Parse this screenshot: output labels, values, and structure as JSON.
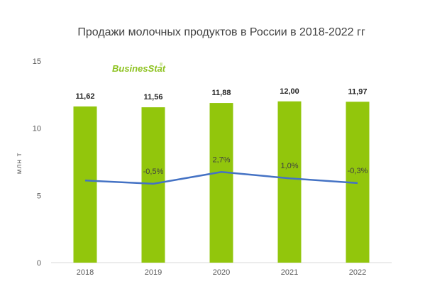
{
  "chart_data": {
    "type": "bar",
    "title": "Продажи молочных продуктов в России в 2018-2022 гг",
    "ylabel": "млн т",
    "xlabel": "",
    "ylim": [
      0,
      15
    ],
    "yticks": [
      0,
      5,
      10,
      15
    ],
    "categories": [
      "2018",
      "2019",
      "2020",
      "2021",
      "2022"
    ],
    "series": [
      {
        "type": "bar",
        "values": [
          11.62,
          11.56,
          11.88,
          12.0,
          11.97
        ],
        "labels": [
          "11,62",
          "11,56",
          "11,88",
          "12,00",
          "11,97"
        ],
        "color": "#92c60c"
      },
      {
        "type": "line",
        "axis": "secondary",
        "values": [
          null,
          -0.5,
          2.7,
          1.0,
          -0.3
        ],
        "labels": [
          "",
          "-0,5%",
          "2,7%",
          "1,0%",
          "-0,3%"
        ],
        "color": "#4472c4"
      }
    ],
    "grid": false,
    "legend": "none"
  },
  "logo": {
    "brand": "BusinesStat",
    "mark": "®"
  }
}
